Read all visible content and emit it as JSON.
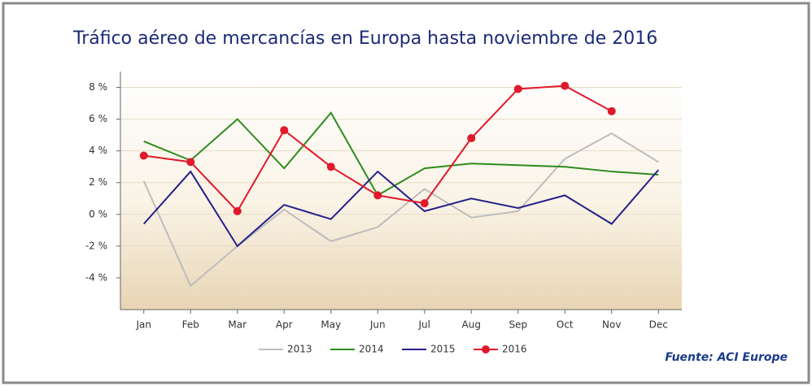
{
  "chart_data": {
    "type": "line",
    "title": "Tráfico aéreo de mercancías en Europa hasta noviembre de 2016",
    "source": "Fuente: ACI Europe",
    "categories": [
      "Jan",
      "Feb",
      "Mar",
      "Apr",
      "May",
      "Jun",
      "Jul",
      "Aug",
      "Sep",
      "Oct",
      "Nov",
      "Dec"
    ],
    "series": [
      {
        "name": "2013",
        "color": "#bdbdbd",
        "marker": false,
        "values": [
          2.1,
          -4.5,
          -2.0,
          0.3,
          -1.7,
          -0.8,
          1.6,
          -0.2,
          0.2,
          3.5,
          5.1,
          3.3
        ]
      },
      {
        "name": "2014",
        "color": "#2e8b1e",
        "marker": false,
        "values": [
          4.6,
          3.4,
          6.0,
          2.9,
          6.4,
          1.2,
          2.9,
          3.2,
          3.1,
          3.0,
          2.7,
          2.5
        ]
      },
      {
        "name": "2015",
        "color": "#25208a",
        "marker": false,
        "values": [
          -0.6,
          2.7,
          -2.0,
          0.6,
          -0.3,
          2.7,
          0.2,
          1.0,
          0.4,
          1.2,
          -0.6,
          2.8
        ]
      },
      {
        "name": "2016",
        "color": "#e0192b",
        "marker": true,
        "values": [
          3.7,
          3.3,
          0.2,
          5.3,
          3.0,
          1.2,
          0.7,
          4.8,
          7.9,
          8.1,
          6.5,
          null
        ]
      }
    ],
    "ylim": [
      -6,
      9
    ],
    "yticks": [
      {
        "value": -4,
        "label": "-4 %"
      },
      {
        "value": -2,
        "label": "-2 %"
      },
      {
        "value": 0,
        "label": "0 %"
      },
      {
        "value": 2,
        "label": "2 %"
      },
      {
        "value": 4,
        "label": "4 %"
      },
      {
        "value": 6,
        "label": "6 %"
      },
      {
        "value": 8,
        "label": "8 %"
      }
    ],
    "grid": true
  }
}
